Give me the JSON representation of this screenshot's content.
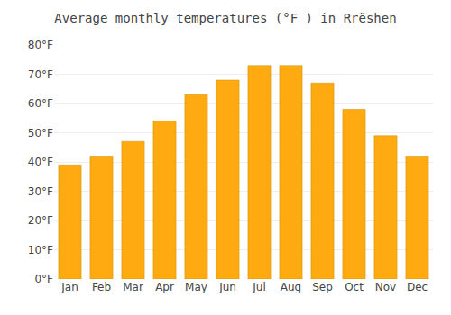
{
  "chart_data": {
    "type": "bar",
    "title": "Average monthly temperatures (°F ) in Rrëshen",
    "categories": [
      "Jan",
      "Feb",
      "Mar",
      "Apr",
      "May",
      "Jun",
      "Jul",
      "Aug",
      "Sep",
      "Oct",
      "Nov",
      "Dec"
    ],
    "values": [
      39.0,
      42.0,
      47.0,
      54.0,
      63.0,
      68.0,
      73.0,
      73.0,
      67.0,
      58.0,
      49.0,
      42.0
    ],
    "color": "#FFAA10",
    "ylim": [
      0,
      80
    ],
    "yticks": [
      {
        "value": 0,
        "label": "0°F"
      },
      {
        "value": 10,
        "label": "10°F"
      },
      {
        "value": 20,
        "label": "20°F"
      },
      {
        "value": 30,
        "label": "30°F"
      },
      {
        "value": 40,
        "label": "40°F"
      },
      {
        "value": 50,
        "label": "50°F"
      },
      {
        "value": 60,
        "label": "60°F"
      },
      {
        "value": 70,
        "label": "70°F"
      },
      {
        "value": 80,
        "label": "80°F"
      }
    ],
    "grid": true
  }
}
